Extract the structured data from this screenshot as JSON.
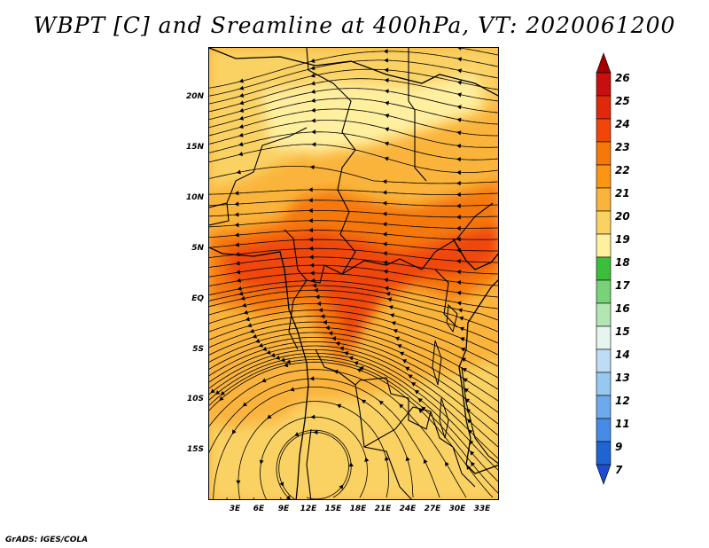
{
  "title": "WBPT [C] and Sreamline at 400hPa, VT: 2020061200",
  "footer": "GrADS: IGES/COLA",
  "map": {
    "lat_labels": [
      "20N",
      "15N",
      "10N",
      "5N",
      "EQ",
      "5S",
      "10S",
      "15S"
    ],
    "lat_values": [
      20,
      15,
      10,
      5,
      0,
      -5,
      -10,
      -15
    ],
    "lon_labels": [
      "3E",
      "6E",
      "9E",
      "12E",
      "15E",
      "18E",
      "21E",
      "24E",
      "27E",
      "30E",
      "33E"
    ],
    "lon_values": [
      3,
      6,
      9,
      12,
      15,
      18,
      21,
      24,
      27,
      30,
      33
    ],
    "lon_range": [
      0,
      34.5
    ],
    "lat_range": [
      -20,
      24.5
    ]
  },
  "colorbar": {
    "labels": [
      "26",
      "25",
      "24",
      "23",
      "22",
      "21",
      "20",
      "19",
      "18",
      "17",
      "16",
      "15",
      "14",
      "13",
      "12",
      "11",
      "9",
      "7"
    ],
    "colors": [
      "#a50000",
      "#c80f0f",
      "#e1280a",
      "#f0460a",
      "#f5780a",
      "#fa9614",
      "#fab43c",
      "#fad264",
      "#fff0a0",
      "#3cbe3c",
      "#78d278",
      "#b4e6b4",
      "#e6f5f0",
      "#bedcf5",
      "#96c8f0",
      "#6eaaeb",
      "#468ce6",
      "#2064d2",
      "#1e4bd2"
    ]
  }
}
